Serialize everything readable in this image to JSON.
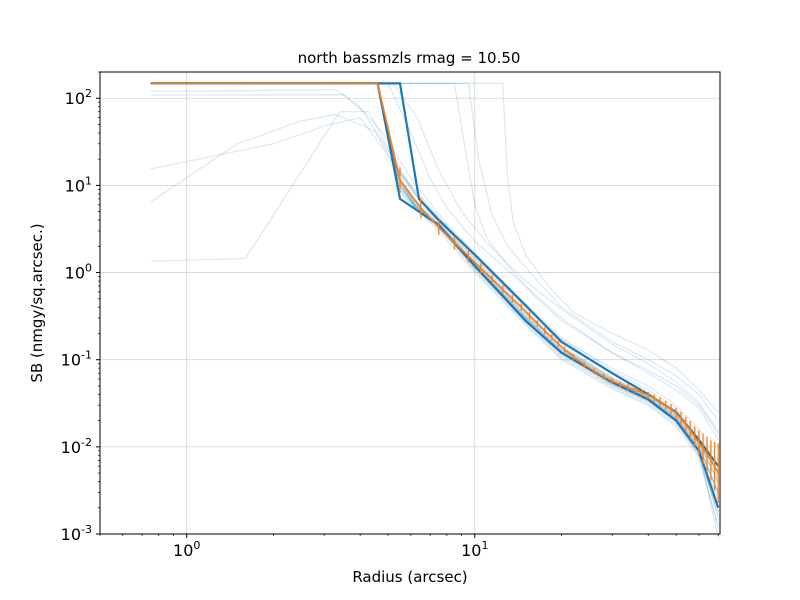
{
  "chart_data": {
    "type": "line",
    "title": "north bassmzls rmag = 10.50",
    "xlabel": "Radius (arcsec)",
    "ylabel": "SB (nmgy/sq.arcsec.)",
    "xscale": "log",
    "yscale": "log",
    "xlim": [
      0.5,
      71
    ],
    "ylim": [
      0.001,
      200
    ],
    "grid": true,
    "x_ticks": [
      {
        "value": 1,
        "label": "10^0"
      },
      {
        "value": 10,
        "label": "10^1"
      }
    ],
    "y_ticks": [
      {
        "value": 100,
        "label": "10^2"
      },
      {
        "value": 10,
        "label": "10^1"
      },
      {
        "value": 1,
        "label": "10^0"
      },
      {
        "value": 0.1,
        "label": "10^-1"
      },
      {
        "value": 0.01,
        "label": "10^-2"
      },
      {
        "value": 0.001,
        "label": "10^-3"
      }
    ],
    "colors": {
      "individual": "#1f77b4",
      "median": "#ff7f0e",
      "envelope": "#1f77b4",
      "grid": "#d3d3d3"
    },
    "envelope": {
      "name": "",
      "x": [
        0.75,
        4.6,
        5.5,
        6.4,
        7.5,
        10,
        15,
        20,
        30,
        40,
        50,
        60,
        70
      ],
      "upper": [
        148,
        148,
        148,
        7,
        4.0,
        1.6,
        0.42,
        0.16,
        0.07,
        0.04,
        0.025,
        0.012,
        0.006
      ],
      "lower": [
        148,
        148,
        7,
        5,
        3.5,
        1.2,
        0.28,
        0.12,
        0.055,
        0.035,
        0.02,
        0.009,
        0.002
      ]
    },
    "median": {
      "name": "",
      "x": [
        0.75,
        4.6,
        5.5,
        6.5,
        7.5,
        8.5,
        9.5,
        10.5,
        11.5,
        12.5,
        13.5,
        14.5,
        15.5,
        16.5,
        17.5,
        18.5,
        19.5,
        20.5,
        22,
        24,
        26,
        28,
        30,
        32,
        34,
        36,
        38,
        40,
        42,
        44,
        46,
        48,
        50,
        52,
        54,
        56,
        58,
        60,
        62,
        64,
        66,
        68,
        70
      ],
      "y": [
        148,
        148,
        11.5,
        5.5,
        3.3,
        2.2,
        1.55,
        1.12,
        0.84,
        0.64,
        0.5,
        0.4,
        0.32,
        0.26,
        0.215,
        0.18,
        0.152,
        0.13,
        0.108,
        0.088,
        0.074,
        0.064,
        0.057,
        0.052,
        0.048,
        0.045,
        0.042,
        0.039,
        0.036,
        0.033,
        0.03,
        0.027,
        0.024,
        0.021,
        0.018,
        0.0155,
        0.013,
        0.011,
        0.0095,
        0.0082,
        0.007,
        0.006,
        0.005
      ],
      "err_factor": [
        1,
        1,
        1.4,
        1.3,
        1.22,
        1.2,
        1.18,
        1.15,
        1.13,
        1.12,
        1.11,
        1.1,
        1.1,
        1.09,
        1.09,
        1.08,
        1.08,
        1.08,
        1.08,
        1.08,
        1.08,
        1.08,
        1.08,
        1.08,
        1.09,
        1.09,
        1.1,
        1.1,
        1.11,
        1.12,
        1.13,
        1.15,
        1.17,
        1.2,
        1.23,
        1.27,
        1.32,
        1.4,
        1.5,
        1.6,
        1.7,
        1.9,
        2.2
      ]
    },
    "series": [
      {
        "x": [
          0.75,
          1.6,
          3.4,
          4.3,
          5.5,
          7,
          10,
          15,
          20,
          30,
          40,
          50,
          60,
          70
        ],
        "y": [
          1.35,
          1.45,
          70,
          70,
          14,
          5.2,
          1.4,
          0.36,
          0.14,
          0.06,
          0.036,
          0.022,
          0.01,
          0.003
        ]
      },
      {
        "x": [
          0.75,
          1.5,
          2.5,
          3.3,
          4.5,
          5.2,
          6.5,
          8,
          10,
          15,
          20,
          30,
          40,
          50,
          60,
          70
        ],
        "y": [
          6.5,
          30,
          55,
          65,
          42,
          18,
          6.5,
          2.9,
          1.3,
          0.34,
          0.14,
          0.058,
          0.035,
          0.021,
          0.01,
          0.003
        ]
      },
      {
        "x": [
          0.75,
          2,
          3,
          4,
          5,
          6,
          8,
          10,
          15,
          20,
          30,
          40,
          50,
          60,
          70
        ],
        "y": [
          15.5,
          30,
          48,
          60,
          22,
          9,
          3.1,
          1.45,
          0.38,
          0.15,
          0.062,
          0.037,
          0.023,
          0.011,
          0.004
        ]
      },
      {
        "x": [
          0.75,
          3.5,
          4.1,
          5,
          6,
          8,
          10,
          15,
          20,
          30,
          40,
          50,
          60,
          70
        ],
        "y": [
          108,
          110,
          70,
          25,
          10,
          3.4,
          1.6,
          0.42,
          0.17,
          0.07,
          0.042,
          0.026,
          0.013,
          0.005
        ]
      },
      {
        "x": [
          0.75,
          3.3,
          3.9,
          4.8,
          6,
          8,
          10,
          15,
          20,
          30,
          40,
          50,
          60,
          70
        ],
        "y": [
          120,
          125,
          85,
          40,
          12,
          3.6,
          1.7,
          0.44,
          0.18,
          0.075,
          0.045,
          0.028,
          0.014,
          0.006
        ]
      },
      {
        "x": [
          0.75,
          4.6,
          5.4,
          6.2,
          7.5,
          10,
          15,
          20,
          30,
          40,
          50,
          60,
          70
        ],
        "y": [
          148,
          148,
          9,
          5.5,
          3.2,
          1.2,
          0.3,
          0.125,
          0.055,
          0.036,
          0.02,
          0.008,
          0.0012
        ]
      },
      {
        "x": [
          0.75,
          4.6,
          5.4,
          6.2,
          7.5,
          10,
          15,
          20,
          30,
          40,
          50,
          60,
          70
        ],
        "y": [
          148,
          148,
          13,
          6.3,
          3.6,
          1.25,
          0.31,
          0.13,
          0.058,
          0.038,
          0.023,
          0.011,
          0.004
        ]
      },
      {
        "x": [
          0.75,
          4.6,
          5.4,
          6.2,
          7.5,
          10,
          15,
          20,
          30,
          40,
          50,
          60,
          70
        ],
        "y": [
          148,
          148,
          10.5,
          5.8,
          3.4,
          1.15,
          0.29,
          0.12,
          0.052,
          0.035,
          0.021,
          0.009,
          0.0025
        ]
      },
      {
        "x": [
          0.75,
          4.6,
          5.4,
          6.2,
          7.5,
          10,
          15,
          20,
          30,
          40,
          50,
          60,
          70
        ],
        "y": [
          148,
          148,
          12,
          6,
          3.5,
          1.1,
          0.27,
          0.11,
          0.05,
          0.033,
          0.019,
          0.008,
          0.0018
        ]
      },
      {
        "x": [
          0.75,
          4.6,
          5.4,
          6.2,
          7.5,
          10,
          15,
          20,
          30,
          40,
          50,
          60,
          70
        ],
        "y": [
          148,
          148,
          11,
          5.6,
          3.3,
          1.05,
          0.26,
          0.105,
          0.048,
          0.031,
          0.018,
          0.0085,
          0.002
        ]
      },
      {
        "x": [
          0.75,
          4.6,
          5.4,
          6.2,
          7.5,
          10,
          15,
          20,
          30,
          40,
          50,
          60,
          70
        ],
        "y": [
          148,
          148,
          14,
          6.8,
          3.9,
          1.3,
          0.33,
          0.14,
          0.062,
          0.04,
          0.025,
          0.012,
          0.0045
        ]
      },
      {
        "x": [
          0.75,
          4.6,
          5.4,
          6.2,
          7.5,
          10,
          15,
          20,
          30,
          40,
          50,
          60,
          70
        ],
        "y": [
          148,
          148,
          10,
          5.7,
          3.4,
          1.18,
          0.3,
          0.122,
          0.054,
          0.035,
          0.021,
          0.0095,
          0.0015
        ]
      },
      {
        "x": [
          0.75,
          4.6,
          5.4,
          6.2,
          7.5,
          10,
          15,
          20,
          30,
          40,
          50,
          60,
          70
        ],
        "y": [
          148,
          148,
          12.5,
          6.1,
          3.55,
          1.22,
          0.31,
          0.128,
          0.057,
          0.037,
          0.022,
          0.0105,
          0.003
        ]
      },
      {
        "x": [
          0.75,
          4.6,
          5.4,
          6.2,
          7.5,
          10,
          15,
          20,
          30,
          40,
          50,
          60,
          70
        ],
        "y": [
          148,
          148,
          11.8,
          5.9,
          3.45,
          1.14,
          0.285,
          0.118,
          0.053,
          0.034,
          0.02,
          0.009,
          0.0022
        ]
      },
      {
        "x": [
          0.75,
          4.6,
          5.4,
          6.2,
          7.5,
          10,
          15,
          20,
          30,
          40,
          50,
          60,
          70
        ],
        "y": [
          148,
          148,
          13,
          6.4,
          3.7,
          1.28,
          0.32,
          0.135,
          0.06,
          0.039,
          0.024,
          0.0115,
          0.0038
        ]
      },
      {
        "x": [
          0.75,
          4.6,
          5.4,
          6.2,
          7.5,
          10,
          15,
          20,
          30,
          40,
          50,
          60,
          70
        ],
        "y": [
          148,
          148,
          10.8,
          5.75,
          3.38,
          1.16,
          0.292,
          0.12,
          0.0535,
          0.0345,
          0.0205,
          0.0092,
          0.0009
        ]
      },
      {
        "x": [
          0.75,
          4.6,
          5.4,
          6.2,
          7.5,
          10,
          15,
          20,
          30,
          40,
          50,
          60,
          70
        ],
        "y": [
          148,
          148,
          12.2,
          6.05,
          3.52,
          1.2,
          0.305,
          0.126,
          0.056,
          0.0365,
          0.0215,
          0.01,
          0.0028
        ]
      },
      {
        "x": [
          0.75,
          4.6,
          5.4,
          6.2,
          7.5,
          10,
          15,
          20,
          30,
          40,
          50,
          60,
          70
        ],
        "y": [
          148,
          148,
          11.3,
          5.85,
          3.42,
          1.12,
          0.28,
          0.115,
          0.051,
          0.033,
          0.0195,
          0.0088,
          0.0016
        ]
      },
      {
        "x": [
          0.75,
          5,
          6,
          7,
          8,
          10,
          15,
          20,
          30,
          40,
          50,
          60,
          70
        ],
        "y": [
          148,
          148,
          40,
          12,
          5.5,
          2.3,
          0.7,
          0.3,
          0.12,
          0.07,
          0.045,
          0.028,
          0.012
        ]
      },
      {
        "x": [
          0.75,
          5.2,
          6.3,
          7.5,
          9,
          11,
          15,
          20,
          30,
          40,
          50,
          60,
          70
        ],
        "y": [
          148,
          148,
          60,
          15,
          5,
          2.2,
          0.8,
          0.38,
          0.15,
          0.09,
          0.055,
          0.032,
          0.015
        ]
      },
      {
        "x": [
          0.75,
          8.5,
          9.2,
          10,
          11,
          13,
          16,
          20,
          30,
          40,
          50,
          60,
          70
        ],
        "y": [
          148,
          148,
          30,
          6,
          2.5,
          1.2,
          0.55,
          0.28,
          0.12,
          0.075,
          0.05,
          0.03,
          0.014
        ]
      },
      {
        "x": [
          0.75,
          9.5,
          10.3,
          11.5,
          13,
          16,
          20,
          30,
          40,
          50,
          60,
          70
        ],
        "y": [
          148,
          148,
          20,
          4.5,
          2,
          0.9,
          0.4,
          0.16,
          0.1,
          0.065,
          0.04,
          0.02
        ]
      },
      {
        "x": [
          0.75,
          12.5,
          13,
          13.6,
          15,
          18,
          22,
          30,
          40,
          50,
          60,
          70
        ],
        "y": [
          148,
          148,
          12,
          3.8,
          1.6,
          0.7,
          0.35,
          0.2,
          0.13,
          0.08,
          0.045,
          0.025
        ]
      },
      {
        "x": [
          0.75,
          4.6,
          5.4,
          6.3,
          7.5,
          10,
          15,
          20,
          30,
          40,
          50,
          60,
          70
        ],
        "y": [
          148,
          148,
          16,
          7.5,
          4.2,
          1.5,
          0.4,
          0.17,
          0.08,
          0.05,
          0.03,
          0.016,
          0.007
        ]
      },
      {
        "x": [
          0.75,
          4.6,
          5.4,
          6.3,
          7.5,
          10,
          15,
          20,
          30,
          40,
          50,
          60,
          70
        ],
        "y": [
          148,
          148,
          9.5,
          5.2,
          3.0,
          1.0,
          0.25,
          0.1,
          0.046,
          0.03,
          0.017,
          0.0075,
          0.0012
        ]
      }
    ]
  }
}
